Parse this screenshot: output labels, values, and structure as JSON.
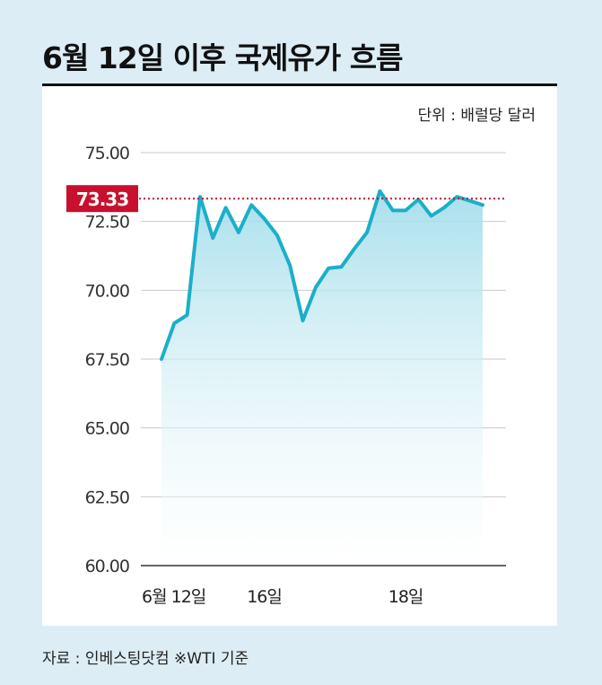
{
  "title": "6월 12일 이후 국제유가 흐름",
  "unit_label": "단위 : 배럴당 달러",
  "source": "자료 : 인베스팅닷컴 ※WTI 기준",
  "colors": {
    "background": "#dcedf5",
    "line": "#1bafc9",
    "fill_top": "#9fdcea",
    "reference": "#c8102e",
    "highlight_label_bg": "#c8102e"
  },
  "chart_data": {
    "type": "area",
    "title": "6월 12일 이후 국제유가 흐름",
    "ylabel": "",
    "unit": "단위 : 배럴당 달러",
    "ylim": [
      60,
      75
    ],
    "yticks": [
      "60.00",
      "62.50",
      "65.00",
      "67.50",
      "70.00",
      "72.50",
      "75.00"
    ],
    "x_labels": [
      {
        "index": 0,
        "text": "6월 12일"
      },
      {
        "index": 8,
        "text": "16일"
      },
      {
        "index": 19,
        "text": "18일"
      }
    ],
    "series": [
      {
        "values": [
          67.5,
          68.8,
          69.1,
          73.4,
          71.9,
          73.0,
          72.1,
          73.1,
          72.6,
          72.0,
          70.9,
          68.9,
          70.1,
          70.8,
          70.85,
          71.5,
          72.1,
          73.6,
          72.9,
          72.9,
          73.3,
          72.7,
          73.0,
          73.4,
          73.25,
          73.1
        ]
      }
    ],
    "reference_line": {
      "value": 73.33,
      "label": "73.33"
    },
    "grid": true
  }
}
